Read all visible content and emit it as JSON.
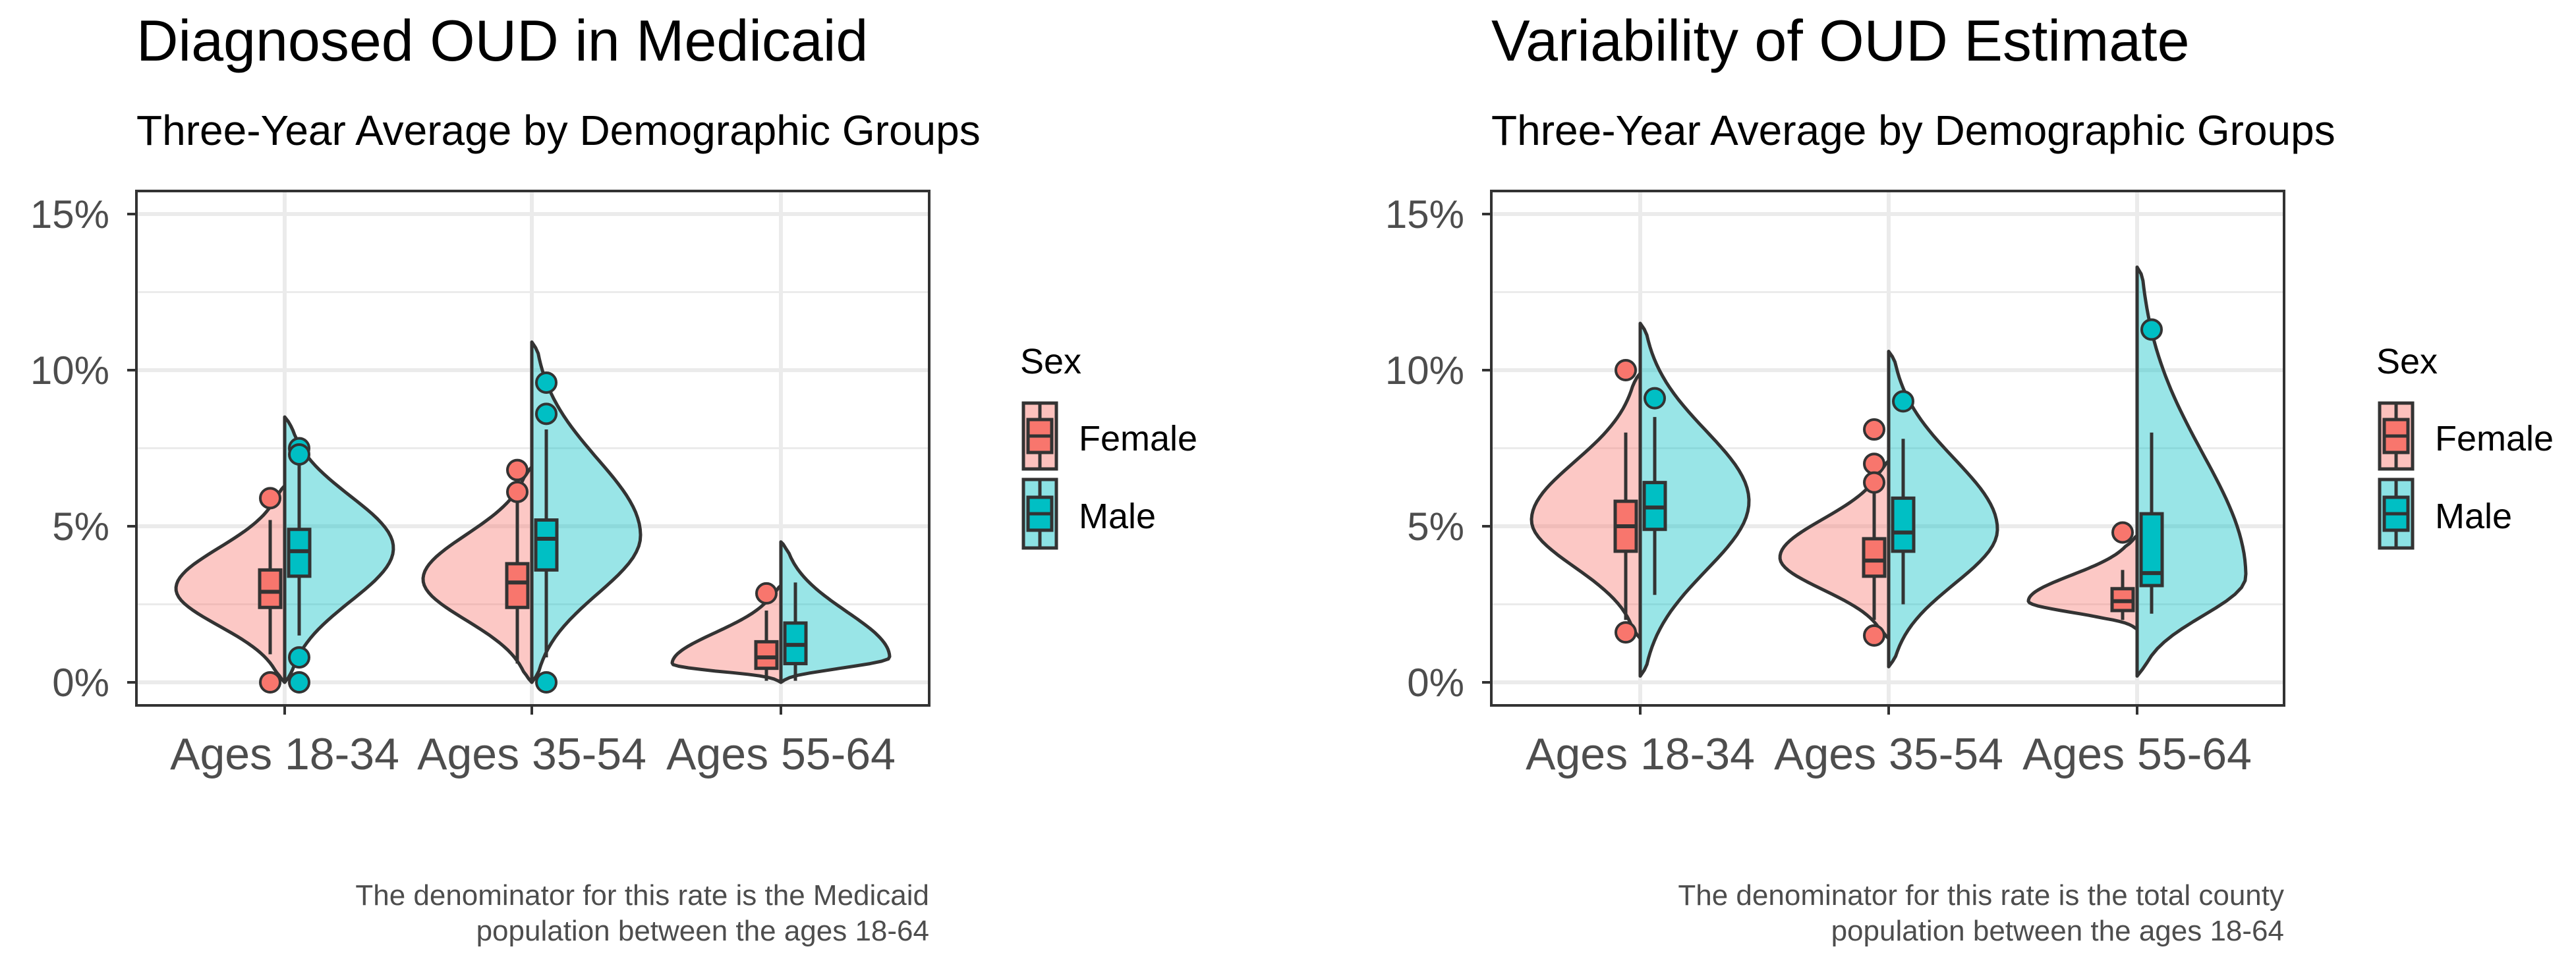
{
  "legend_colors": {
    "female": "#F8766D",
    "male": "#00BFC4"
  },
  "chart_data": [
    {
      "type": "violin",
      "title": "Diagnosed OUD in Medicaid",
      "subtitle": "Three-Year Average by Demographic Groups",
      "caption": [
        "The denominator for this rate is the Medicaid ",
        "population between the ages 18-64"
      ],
      "categories": [
        "Ages 18-34",
        "Ages 35-54",
        "Ages 55-64"
      ],
      "y_ticks": [
        "15%",
        "10%",
        "5%",
        "0%"
      ],
      "y_tick_values": [
        15,
        10,
        5,
        0
      ],
      "ylim": [
        0,
        15
      ],
      "grid": true,
      "legend": {
        "title": "Sex",
        "entries": [
          "Female",
          "Male"
        ],
        "placement": "right"
      },
      "groups": [
        {
          "category": "Ages 18-34",
          "female": {
            "y_min": 0,
            "y_max": 6.3,
            "mode": 3.0,
            "whisker": [
              0.9,
              5.2
            ],
            "q1": 2.4,
            "median": 2.9,
            "q3": 3.6,
            "outliers": [
              5.9,
              0.0
            ]
          },
          "male": {
            "y_min": 0,
            "y_max": 8.5,
            "mode": 4.3,
            "whisker": [
              1.5,
              7.2
            ],
            "q1": 3.4,
            "median": 4.2,
            "q3": 4.9,
            "outliers": [
              7.5,
              7.3,
              0.8,
              0.0
            ]
          }
        },
        {
          "category": "Ages 35-54",
          "female": {
            "y_min": 0,
            "y_max": 6.9,
            "mode": 3.3,
            "whisker": [
              0.6,
              5.8
            ],
            "q1": 2.4,
            "median": 3.2,
            "q3": 3.8,
            "outliers": [
              6.8,
              6.1
            ]
          },
          "male": {
            "y_min": 0,
            "y_max": 10.9,
            "mode": 4.7,
            "whisker": [
              0.8,
              8.1
            ],
            "q1": 3.6,
            "median": 4.6,
            "q3": 5.2,
            "outliers": [
              9.6,
              8.6,
              0.0
            ]
          }
        },
        {
          "category": "Ages 55-64",
          "female": {
            "y_min": 0,
            "y_max": 3.1,
            "mode": 0.6,
            "whisker": [
              0.05,
              2.3
            ],
            "q1": 0.45,
            "median": 0.8,
            "q3": 1.3,
            "outliers": [
              2.85
            ]
          },
          "male": {
            "y_min": 0,
            "y_max": 4.5,
            "mode": 0.8,
            "whisker": [
              0.05,
              3.2
            ],
            "q1": 0.6,
            "median": 1.2,
            "q3": 1.9,
            "outliers": []
          }
        }
      ]
    },
    {
      "type": "violin",
      "title": "Variability of OUD Estimate",
      "subtitle": "Three-Year Average by Demographic Groups",
      "caption": [
        "The denominator for this rate is the total county ",
        "population between the ages 18-64"
      ],
      "categories": [
        "Ages 18-34",
        "Ages 35-54",
        "Ages 55-64"
      ],
      "y_ticks": [
        "15%",
        "10%",
        "5%",
        "0%"
      ],
      "y_tick_values": [
        15,
        10,
        5,
        0
      ],
      "ylim": [
        0,
        15
      ],
      "grid": true,
      "legend": {
        "title": "Sex",
        "entries": [
          "Female",
          "Male"
        ],
        "placement": "right"
      },
      "groups": [
        {
          "category": "Ages 18-34",
          "female": {
            "y_min": 1.4,
            "y_max": 9.9,
            "mode": 5.2,
            "whisker": [
              2.0,
              8.0
            ],
            "q1": 4.2,
            "median": 5.0,
            "q3": 5.8,
            "outliers": [
              10.0,
              1.6
            ]
          },
          "male": {
            "y_min": 0.2,
            "y_max": 11.5,
            "mode": 5.8,
            "whisker": [
              2.8,
              8.5
            ],
            "q1": 4.9,
            "median": 5.6,
            "q3": 6.4,
            "outliers": [
              9.1
            ]
          }
        },
        {
          "category": "Ages 35-54",
          "female": {
            "y_min": 1.4,
            "y_max": 7.1,
            "mode": 4.0,
            "whisker": [
              2.0,
              6.3
            ],
            "q1": 3.4,
            "median": 3.9,
            "q3": 4.6,
            "outliers": [
              8.1,
              7.0,
              6.4,
              1.5
            ]
          },
          "male": {
            "y_min": 0.5,
            "y_max": 10.6,
            "mode": 4.9,
            "whisker": [
              2.5,
              7.8
            ],
            "q1": 4.2,
            "median": 4.8,
            "q3": 5.9,
            "outliers": [
              9.0
            ]
          }
        },
        {
          "category": "Ages 55-64",
          "female": {
            "y_min": 1.7,
            "y_max": 4.7,
            "mode": 2.6,
            "whisker": [
              2.0,
              3.6
            ],
            "q1": 2.3,
            "median": 2.6,
            "q3": 3.0,
            "outliers": [
              4.8
            ]
          },
          "male": {
            "y_min": 0.2,
            "y_max": 13.3,
            "mode": 3.4,
            "whisker": [
              2.2,
              8.0
            ],
            "q1": 3.1,
            "median": 3.5,
            "q3": 5.4,
            "outliers": [
              11.3
            ]
          }
        }
      ]
    }
  ]
}
